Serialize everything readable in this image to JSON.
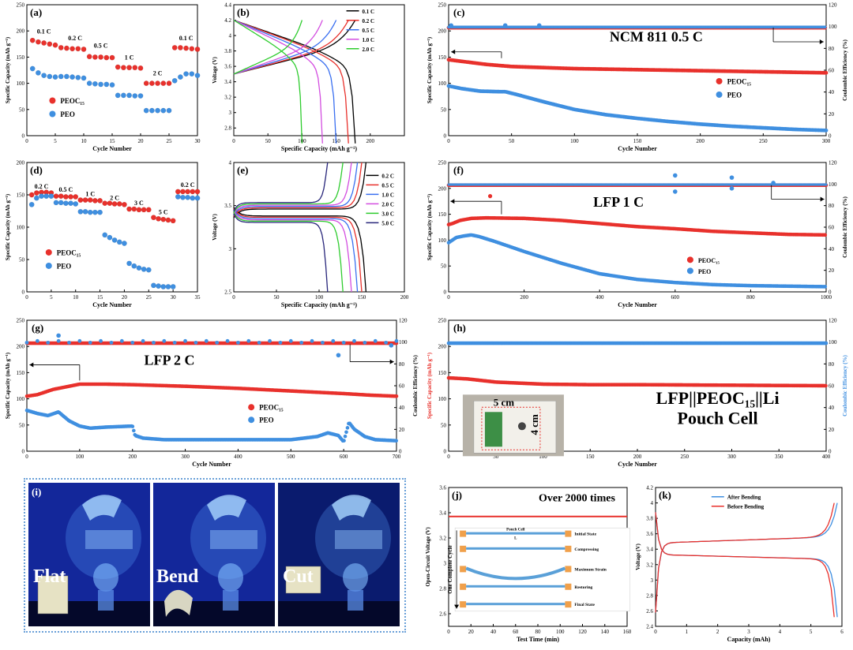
{
  "panels": {
    "a": {
      "label": "(a)"
    },
    "b": {
      "label": "(b)"
    },
    "c": {
      "label": "(c)"
    },
    "d": {
      "label": "(d)"
    },
    "e": {
      "label": "(e)"
    },
    "f": {
      "label": "(f)"
    },
    "g": {
      "label": "(g)"
    },
    "h": {
      "label": "(h)"
    },
    "i": {
      "label": "(i)",
      "states": [
        "Flat",
        "Bend",
        "Cut"
      ]
    },
    "j": {
      "label": "(j)"
    },
    "k": {
      "label": "(k)"
    }
  },
  "chart_data": [
    {
      "id": "a",
      "type": "scatter",
      "xlabel": "Cycle Number",
      "ylabel": "Specific Capacity (mAh g⁻¹)",
      "xlim": [
        0,
        30
      ],
      "ylim": [
        0,
        250
      ],
      "xticks": [
        0,
        5,
        10,
        15,
        20,
        25,
        30
      ],
      "yticks": [
        0,
        50,
        100,
        150,
        200,
        250
      ],
      "rate_labels": [
        "0.1 C",
        "0.2 C",
        "0.5 C",
        "1 C",
        "2 C",
        "0.1 C"
      ],
      "legend": [
        "PEOC₁₅",
        "PEO"
      ],
      "series": [
        {
          "name": "PEOC₁₅",
          "color": "#e8312c",
          "x": [
            1,
            2,
            3,
            4,
            5,
            6,
            7,
            8,
            9,
            10,
            11,
            12,
            13,
            14,
            15,
            16,
            17,
            18,
            19,
            20,
            21,
            22,
            23,
            24,
            25,
            26,
            27,
            28,
            29,
            30
          ],
          "y": [
            182,
            179,
            177,
            175,
            173,
            168,
            167,
            166,
            166,
            165,
            151,
            150,
            150,
            149,
            149,
            131,
            130,
            130,
            130,
            129,
            100,
            100,
            100,
            100,
            100,
            168,
            168,
            167,
            166,
            165
          ]
        },
        {
          "name": "PEO",
          "color": "#3f8fe0",
          "x": [
            1,
            2,
            3,
            4,
            5,
            6,
            7,
            8,
            9,
            10,
            11,
            12,
            13,
            14,
            15,
            16,
            17,
            18,
            19,
            20,
            21,
            22,
            23,
            24,
            25,
            26,
            27,
            28,
            29,
            30
          ],
          "y": [
            128,
            120,
            115,
            113,
            112,
            113,
            113,
            112,
            111,
            110,
            100,
            99,
            98,
            98,
            97,
            77,
            77,
            77,
            76,
            76,
            48,
            48,
            48,
            48,
            48,
            105,
            112,
            118,
            118,
            115
          ]
        }
      ]
    },
    {
      "id": "b",
      "type": "line",
      "xlabel": "Specific Capacity (mAh g⁻¹)",
      "ylabel": "Voltage (V)",
      "xlim": [
        0,
        250
      ],
      "ylim": [
        2.7,
        4.4
      ],
      "xticks": [
        0,
        50,
        100,
        150,
        200
      ],
      "yticks": [
        2.8,
        3.0,
        3.2,
        3.4,
        3.6,
        3.8,
        4.0,
        4.2,
        4.4
      ],
      "legend": [
        "0.1 C",
        "0.2 C",
        "0.5 C",
        "1.0 C",
        "2.0 C"
      ],
      "series": [
        {
          "name": "0.1 C",
          "color": "#000000",
          "capacity": 178
        },
        {
          "name": "0.2 C",
          "color": "#e8312c",
          "capacity": 168
        },
        {
          "name": "0.5 C",
          "color": "#3a6ff0",
          "capacity": 150
        },
        {
          "name": "1.0 C",
          "color": "#d34ee0",
          "capacity": 130
        },
        {
          "name": "2.0 C",
          "color": "#2ecc2e",
          "capacity": 100
        }
      ]
    },
    {
      "id": "c",
      "type": "scatter",
      "title": "NCM 811  0.5 C",
      "xlabel": "Cycle Number",
      "ylabel": "Specific Capacity (mAh g⁻¹)",
      "y2label": "Coulombic Efficiency (%)",
      "xlim": [
        0,
        300
      ],
      "ylim": [
        0,
        250
      ],
      "y2lim": [
        0,
        120
      ],
      "xticks": [
        0,
        50,
        100,
        150,
        200,
        250,
        300
      ],
      "yticks": [
        0,
        50,
        100,
        150,
        200,
        250
      ],
      "y2ticks": [
        0,
        20,
        40,
        60,
        80,
        100,
        120
      ],
      "legend": [
        "PEOC₁₅",
        "PEO"
      ],
      "series": [
        {
          "name": "PEOC₁₅ capacity",
          "color": "#e8312c",
          "x": [
            0,
            10,
            30,
            50,
            75,
            100,
            150,
            200,
            250,
            300
          ],
          "y": [
            145,
            142,
            136,
            132,
            130,
            128,
            126,
            124,
            122,
            120
          ]
        },
        {
          "name": "PEO capacity",
          "color": "#3f8fe0",
          "x": [
            0,
            10,
            25,
            40,
            45,
            55,
            75,
            100,
            125,
            150,
            175,
            200,
            225,
            250,
            275,
            300
          ],
          "y": [
            95,
            90,
            85,
            84,
            84,
            78,
            65,
            50,
            40,
            33,
            27,
            22,
            18,
            15,
            12,
            10
          ]
        },
        {
          "name": "PEOC₁₅ CE",
          "color": "#e8312c",
          "x": [
            0,
            300
          ],
          "y": [
            99,
            99
          ]
        },
        {
          "name": "PEO CE",
          "color": "#3f8fe0",
          "x": [
            0,
            300
          ],
          "y": [
            99.5,
            99.5
          ]
        }
      ]
    },
    {
      "id": "d",
      "type": "scatter",
      "xlabel": "Cycle Number",
      "ylabel": "Specific Capacity (mAh g⁻¹)",
      "xlim": [
        0,
        35
      ],
      "ylim": [
        0,
        200
      ],
      "xticks": [
        0,
        5,
        10,
        15,
        20,
        25,
        30,
        35
      ],
      "yticks": [
        0,
        50,
        100,
        150,
        200
      ],
      "rate_labels": [
        "0.2 C",
        "0.5 C",
        "1 C",
        "2 C",
        "3 C",
        "5 C",
        "0.2 C"
      ],
      "legend": [
        "PEOC₁₅",
        "PEO"
      ],
      "series": [
        {
          "name": "PEOC₁₅",
          "color": "#e8312c",
          "x": [
            1,
            2,
            3,
            4,
            5,
            6,
            7,
            8,
            9,
            10,
            11,
            12,
            13,
            14,
            15,
            16,
            17,
            18,
            19,
            20,
            21,
            22,
            23,
            24,
            25,
            26,
            27,
            28,
            29,
            30,
            31,
            32,
            33,
            34,
            35
          ],
          "y": [
            150,
            153,
            154,
            154,
            153,
            148,
            148,
            147,
            147,
            147,
            142,
            142,
            142,
            141,
            141,
            137,
            137,
            136,
            136,
            135,
            128,
            128,
            127,
            127,
            127,
            115,
            113,
            112,
            111,
            110,
            155,
            155,
            155,
            155,
            155
          ]
        },
        {
          "name": "PEO",
          "color": "#3f8fe0",
          "x": [
            1,
            2,
            3,
            4,
            5,
            6,
            7,
            8,
            9,
            10,
            11,
            12,
            13,
            14,
            15,
            16,
            17,
            18,
            19,
            20,
            21,
            22,
            23,
            24,
            25,
            26,
            27,
            28,
            29,
            30,
            31,
            32,
            33,
            34,
            35
          ],
          "y": [
            135,
            145,
            148,
            148,
            148,
            138,
            138,
            137,
            137,
            136,
            124,
            124,
            123,
            123,
            123,
            88,
            84,
            80,
            77,
            75,
            44,
            40,
            37,
            35,
            34,
            10,
            9,
            8,
            8,
            8,
            147,
            146,
            146,
            145,
            145
          ]
        }
      ]
    },
    {
      "id": "e",
      "type": "line",
      "xlabel": "Specific Capacity (mAh g⁻¹)",
      "ylabel": "Voltage (V)",
      "xlim": [
        0,
        200
      ],
      "ylim": [
        2.5,
        4.0
      ],
      "xticks": [
        0,
        50,
        100,
        150,
        200
      ],
      "yticks": [
        2.5,
        3.0,
        3.5,
        4.0
      ],
      "legend": [
        "0.2 C",
        "0.5 C",
        "1.0 C",
        "2.0 C",
        "3.0 C",
        "5.0 C"
      ],
      "series": [
        {
          "name": "0.2 C",
          "color": "#000000",
          "capacity": 155
        },
        {
          "name": "0.5 C",
          "color": "#e8312c",
          "capacity": 150
        },
        {
          "name": "1.0 C",
          "color": "#3a6ff0",
          "capacity": 145
        },
        {
          "name": "2.0 C",
          "color": "#d34ee0",
          "capacity": 138
        },
        {
          "name": "3.0 C",
          "color": "#2ecc2e",
          "capacity": 128
        },
        {
          "name": "5.0 C",
          "color": "#27257a",
          "capacity": 110
        }
      ]
    },
    {
      "id": "f",
      "type": "scatter",
      "title": "LFP  1 C",
      "xlabel": "Cycle Number",
      "ylabel": "Specific Capacity (mAh g⁻¹)",
      "y2label": "Coulombic Efficiency (%)",
      "xlim": [
        0,
        1000
      ],
      "ylim": [
        0,
        250
      ],
      "y2lim": [
        0,
        120
      ],
      "xticks": [
        0,
        200,
        400,
        600,
        800,
        1000
      ],
      "yticks": [
        0,
        50,
        100,
        150,
        200,
        250
      ],
      "y2ticks": [
        0,
        20,
        40,
        60,
        80,
        100,
        120
      ],
      "legend": [
        "PEOC₁₅",
        "PEO"
      ],
      "series": [
        {
          "name": "PEOC₁₅ capacity",
          "color": "#e8312c",
          "x": [
            0,
            10,
            30,
            60,
            100,
            200,
            300,
            400,
            500,
            600,
            700,
            800,
            900,
            1000
          ],
          "y": [
            130,
            132,
            138,
            142,
            143,
            142,
            138,
            132,
            126,
            122,
            117,
            114,
            111,
            110
          ]
        },
        {
          "name": "PEO capacity",
          "color": "#3f8fe0",
          "x": [
            0,
            20,
            40,
            60,
            80,
            120,
            160,
            200,
            300,
            400,
            500,
            600,
            700,
            800,
            900,
            1000
          ],
          "y": [
            95,
            105,
            108,
            110,
            107,
            98,
            88,
            78,
            55,
            35,
            24,
            18,
            14,
            12,
            11,
            10
          ]
        },
        {
          "name": "PEOC₁₅ CE",
          "color": "#e8312c",
          "x": [
            0,
            1000
          ],
          "y": [
            99,
            99
          ]
        },
        {
          "name": "PEO CE",
          "color": "#3f8fe0",
          "x": [
            0,
            1000
          ],
          "y": [
            99.5,
            99.5
          ]
        }
      ]
    },
    {
      "id": "g",
      "type": "scatter",
      "title": "LFP  2 C",
      "xlabel": "Cycle Number",
      "ylabel": "Specific Capacity (mAh g⁻¹)",
      "y2label": "Coulombic Efficiency (%)",
      "xlim": [
        0,
        700
      ],
      "ylim": [
        0,
        250
      ],
      "y2lim": [
        0,
        120
      ],
      "xticks": [
        0,
        100,
        200,
        300,
        400,
        500,
        600,
        700
      ],
      "yticks": [
        0,
        50,
        100,
        150,
        200,
        250
      ],
      "y2ticks": [
        0,
        20,
        40,
        60,
        80,
        100,
        120
      ],
      "legend": [
        "PEOC₁₅",
        "PEO"
      ],
      "series": [
        {
          "name": "PEOC₁₅ capacity",
          "color": "#e8312c",
          "x": [
            0,
            20,
            50,
            100,
            150,
            200,
            300,
            400,
            500,
            600,
            650,
            700
          ],
          "y": [
            105,
            108,
            118,
            128,
            128,
            127,
            124,
            120,
            115,
            110,
            107,
            105
          ]
        },
        {
          "name": "PEO capacity",
          "color": "#3f8fe0",
          "x": [
            0,
            20,
            40,
            60,
            80,
            100,
            120,
            150,
            200,
            205,
            220,
            260,
            300,
            400,
            500,
            550,
            570,
            590,
            600,
            610,
            620,
            640,
            660,
            700
          ],
          "y": [
            78,
            72,
            68,
            75,
            58,
            48,
            44,
            46,
            48,
            30,
            25,
            22,
            22,
            22,
            22,
            28,
            35,
            30,
            18,
            55,
            42,
            28,
            22,
            20
          ]
        },
        {
          "name": "PEOC₁₅ CE",
          "color": "#e8312c",
          "x": [
            0,
            700
          ],
          "y": [
            99,
            99
          ]
        },
        {
          "name": "PEO CE",
          "color": "#3f8fe0",
          "x": [
            0,
            700
          ],
          "y": [
            100,
            100
          ]
        }
      ]
    },
    {
      "id": "h",
      "type": "scatter",
      "title": "LFP||PEOC₁₅||Li",
      "subtitle": "Pouch Cell",
      "xlabel": "Cycle Number",
      "ylabel": "Specific Capacity (mAh g⁻¹)",
      "y2label": "Coulombic Efficiency (%)",
      "xlim": [
        0,
        400
      ],
      "ylim": [
        0,
        250
      ],
      "y2lim": [
        0,
        120
      ],
      "xticks": [
        0,
        50,
        100,
        150,
        200,
        250,
        300,
        350,
        400
      ],
      "yticks": [
        0,
        50,
        100,
        150,
        200,
        250
      ],
      "y2ticks": [
        0,
        20,
        40,
        60,
        80,
        100,
        120
      ],
      "inset": {
        "width_label": "5 cm",
        "height_label": "4 cm"
      },
      "series": [
        {
          "name": "capacity",
          "color": "#e8312c",
          "x": [
            0,
            20,
            50,
            100,
            150,
            200,
            300,
            400
          ],
          "y": [
            140,
            138,
            132,
            128,
            127,
            127,
            126,
            125
          ]
        },
        {
          "name": "CE",
          "color": "#3f8fe0",
          "x": [
            0,
            400
          ],
          "y": [
            99,
            99
          ]
        }
      ]
    },
    {
      "id": "j",
      "type": "line",
      "title": "Over 2000 times",
      "xlabel": "Test Time (min)",
      "ylabel": "Open-Circuit Voltage (V)",
      "xlim": [
        0,
        160
      ],
      "ylim": [
        2.5,
        3.6
      ],
      "xticks": [
        0,
        20,
        40,
        60,
        80,
        100,
        120,
        140,
        160
      ],
      "yticks": [
        2.6,
        2.8,
        3.0,
        3.2,
        3.4,
        3.6
      ],
      "series": [
        {
          "name": "OCV",
          "color": "#e8312c",
          "x": [
            0,
            160
          ],
          "y": [
            3.37,
            3.37
          ]
        }
      ],
      "inset": {
        "cycle_label": "One Complete Cycle",
        "pouch_label": "Pouch Cell",
        "length_label": "L",
        "steps": [
          "Initial State",
          "Compressing",
          "Maximum Strain",
          "Restoring",
          "Final State"
        ]
      }
    },
    {
      "id": "k",
      "type": "line",
      "xlabel": "Capacity (mAh)",
      "ylabel": "Voltage (V)",
      "xlim": [
        0,
        6
      ],
      "ylim": [
        2.4,
        4.2
      ],
      "xticks": [
        0,
        1,
        2,
        3,
        4,
        5,
        6
      ],
      "yticks": [
        2.4,
        2.6,
        2.8,
        3.0,
        3.2,
        3.4,
        3.6,
        3.8,
        4.0,
        4.2
      ],
      "legend": [
        "After Bending",
        "Before Bending"
      ],
      "series": [
        {
          "name": "After Bending",
          "color": "#3f8fe0",
          "capacity": 5.85
        },
        {
          "name": "Before Bending",
          "color": "#e8312c",
          "capacity": 5.75
        }
      ]
    }
  ]
}
